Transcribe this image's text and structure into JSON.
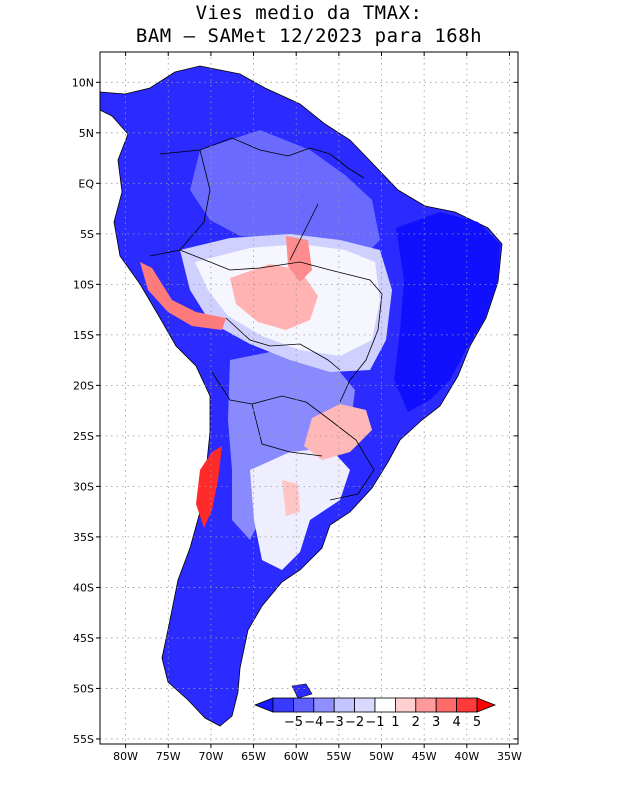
{
  "title_line1": "Vies medio da TMAX:",
  "title_line2": "BAM – SAMet 12/2023  para 168h",
  "chart_data": {
    "type": "heatmap",
    "title": "Vies medio da TMAX: BAM – SAMet 12/2023 para 168h",
    "variable": "TMAX bias",
    "region": "South America",
    "lon_range": [
      -83,
      -34
    ],
    "lat_range": [
      -55.5,
      13
    ],
    "x_ticks": [
      {
        "value": -80,
        "label": "80W"
      },
      {
        "value": -75,
        "label": "75W"
      },
      {
        "value": -70,
        "label": "70W"
      },
      {
        "value": -65,
        "label": "65W"
      },
      {
        "value": -60,
        "label": "60W"
      },
      {
        "value": -55,
        "label": "55W"
      },
      {
        "value": -50,
        "label": "50W"
      },
      {
        "value": -45,
        "label": "45W"
      },
      {
        "value": -40,
        "label": "40W"
      },
      {
        "value": -35,
        "label": "35W"
      }
    ],
    "y_ticks": [
      {
        "value": 10,
        "label": "10N"
      },
      {
        "value": 5,
        "label": "5N"
      },
      {
        "value": 0,
        "label": "EQ"
      },
      {
        "value": -5,
        "label": "5S"
      },
      {
        "value": -10,
        "label": "10S"
      },
      {
        "value": -15,
        "label": "15S"
      },
      {
        "value": -20,
        "label": "20S"
      },
      {
        "value": -25,
        "label": "25S"
      },
      {
        "value": -30,
        "label": "30S"
      },
      {
        "value": -35,
        "label": "35S"
      },
      {
        "value": -40,
        "label": "40S"
      },
      {
        "value": -45,
        "label": "45S"
      },
      {
        "value": -50,
        "label": "50S"
      },
      {
        "value": -55,
        "label": "55S"
      }
    ],
    "grid": "dotted",
    "colorbar": {
      "labels": [
        "−5",
        "−4",
        "−3",
        "−2",
        "−1",
        "1",
        "2",
        "3",
        "4",
        "5"
      ],
      "colors": [
        "#1a1aff",
        "#3a3aff",
        "#6060ff",
        "#8f8fff",
        "#c4c4ff",
        "#d9d9ff",
        "#ffffff",
        "#ffd0d0",
        "#ff9a9a",
        "#ff6a6a",
        "#ff3a3a",
        "#ff0000"
      ],
      "placement": "bottom-right inside map"
    }
  }
}
